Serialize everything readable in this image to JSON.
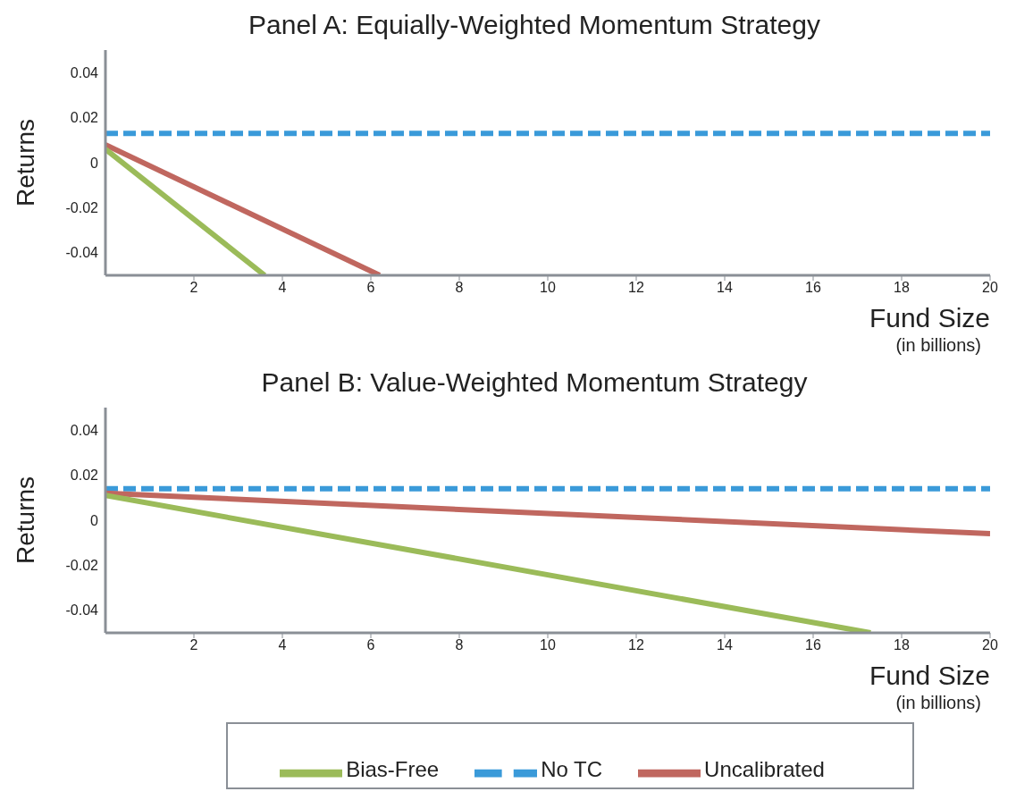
{
  "chart_data": [
    {
      "type": "line",
      "title": "Panel A:   Equially-Weighted Momentum Strategy",
      "xlabel": "Fund Size",
      "ylabel": "Returns",
      "annotations": [
        "(in billions)"
      ],
      "xlim": [
        0,
        20
      ],
      "xticks": [
        2,
        4,
        6,
        8,
        10,
        12,
        14,
        16,
        18,
        20
      ],
      "ylim": [
        -0.05,
        0.05
      ],
      "yticks": [
        -0.04,
        -0.02,
        0,
        0.02,
        0.04
      ],
      "grid": false,
      "marker": "none",
      "series": [
        {
          "color": "#3a9ad9",
          "line_style": "dashed",
          "x": [
            0,
            20
          ],
          "values": [
            0.013,
            0.013
          ]
        },
        {
          "color": "#c0675f",
          "line_style": "solid",
          "x": [
            0,
            6.2
          ],
          "values": [
            0.008,
            -0.05
          ]
        },
        {
          "color": "#9bbb59",
          "line_style": "solid",
          "x": [
            0,
            3.6
          ],
          "values": [
            0.006,
            -0.05
          ]
        }
      ]
    },
    {
      "type": "line",
      "title": "Panel B:   Value-Weighted Momentum Strategy",
      "xlabel": "Fund Size",
      "ylabel": "Returns",
      "annotations": [
        "(in billions)"
      ],
      "xlim": [
        0,
        20
      ],
      "xticks": [
        2,
        4,
        6,
        8,
        10,
        12,
        14,
        16,
        18,
        20
      ],
      "ylim": [
        -0.05,
        0.05
      ],
      "yticks": [
        -0.04,
        -0.02,
        0,
        0.02,
        0.04
      ],
      "grid": false,
      "legend": "bottom",
      "marker": "none",
      "series": [
        {
          "name": "No TC",
          "color": "#3a9ad9",
          "line_style": "dashed",
          "x": [
            0,
            20
          ],
          "values": [
            0.014,
            0.014
          ]
        },
        {
          "name": "Uncalibrated",
          "color": "#c0675f",
          "line_style": "solid",
          "x": [
            0,
            20
          ],
          "values": [
            0.012,
            -0.006
          ]
        },
        {
          "name": "Bias-Free",
          "color": "#9bbb59",
          "line_style": "solid",
          "x": [
            0,
            17.3
          ],
          "values": [
            0.011,
            -0.05
          ]
        }
      ]
    }
  ]
}
